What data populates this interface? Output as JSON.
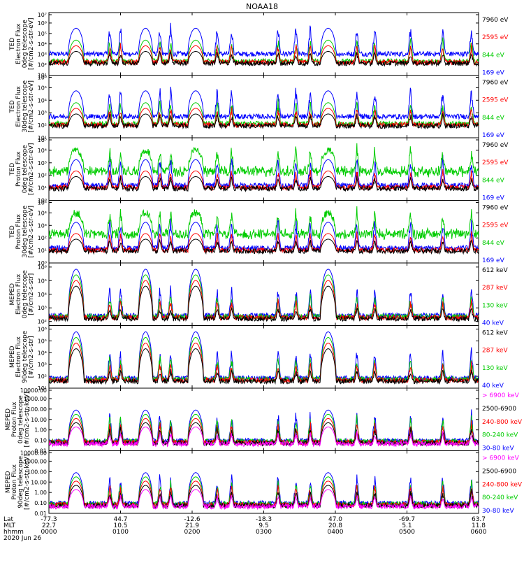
{
  "chart_data": {
    "type": "line",
    "title": "NOAA18",
    "panels": [
      {
        "name": "ted-electron-0deg",
        "ylabel_lines": [
          "TED",
          "Electron Flux",
          "0deg telescope",
          "[#/cm2-s-str-eV]"
        ],
        "yscale": "log",
        "yticks": [
          "10¹",
          "10²",
          "10³",
          "10⁴",
          "10⁵",
          "10⁶",
          "10⁷"
        ],
        "ylim_exp": [
          1,
          7
        ],
        "legend": [
          {
            "label": "7960 eV",
            "color": "#000000"
          },
          {
            "label": "2595 eV",
            "color": "#ff0000"
          },
          {
            "label": "844 eV",
            "color": "#00cc00"
          },
          {
            "label": "169 eV",
            "color": "#0000ff"
          }
        ]
      },
      {
        "name": "ted-electron-30deg",
        "ylabel_lines": [
          "TED",
          "Electron Flux",
          "30deg telescope",
          "[#/cm2-s-str-eV]"
        ],
        "yscale": "log",
        "yticks": [
          "10¹",
          "10²",
          "10³",
          "10⁴",
          "10⁵",
          "10⁶"
        ],
        "ylim_exp": [
          1,
          6
        ],
        "legend": [
          {
            "label": "7960 eV",
            "color": "#000000"
          },
          {
            "label": "2595 eV",
            "color": "#ff0000"
          },
          {
            "label": "844 eV",
            "color": "#00cc00"
          },
          {
            "label": "169 eV",
            "color": "#0000ff"
          }
        ]
      },
      {
        "name": "ted-proton-0deg",
        "ylabel_lines": [
          "TED",
          "Proton Flux",
          "0deg telescope",
          "[#/cm2-s-str-eV]"
        ],
        "yscale": "log",
        "yticks": [
          "10⁰",
          "10¹",
          "10²",
          "10³",
          "10⁴",
          "10⁵"
        ],
        "ylim_exp": [
          0,
          5
        ],
        "legend": [
          {
            "label": "7960 eV",
            "color": "#000000"
          },
          {
            "label": "2595 eV",
            "color": "#ff0000"
          },
          {
            "label": "844 eV",
            "color": "#00cc00"
          },
          {
            "label": "169 eV",
            "color": "#0000ff"
          }
        ]
      },
      {
        "name": "ted-proton-30deg",
        "ylabel_lines": [
          "TED",
          "Proton Flux",
          "30deg telescope",
          "[#/cm2-s-str-eV]"
        ],
        "yscale": "log",
        "yticks": [
          "10⁰",
          "10¹",
          "10²",
          "10³",
          "10⁴",
          "10⁵"
        ],
        "ylim_exp": [
          0,
          5
        ],
        "legend": [
          {
            "label": "7960 eV",
            "color": "#000000"
          },
          {
            "label": "2595 eV",
            "color": "#ff0000"
          },
          {
            "label": "844 eV",
            "color": "#00cc00"
          },
          {
            "label": "169 eV",
            "color": "#0000ff"
          }
        ]
      },
      {
        "name": "meped-electron-0deg",
        "ylabel_lines": [
          "MEPED",
          "Electron Flux",
          "0deg telescope",
          "[#/cm2-s-str]"
        ],
        "yscale": "log",
        "yticks": [
          "10²",
          "10³",
          "10⁴",
          "10⁵",
          "10⁶"
        ],
        "ylim_exp": [
          1.7,
          6.3
        ],
        "legend": [
          {
            "label": "612 keV",
            "color": "#000000"
          },
          {
            "label": "287 keV",
            "color": "#ff0000"
          },
          {
            "label": "130 keV",
            "color": "#00cc00"
          },
          {
            "label": "40 keV",
            "color": "#0000ff"
          }
        ]
      },
      {
        "name": "meped-electron-90deg",
        "ylabel_lines": [
          "MEPED",
          "Electron Flux",
          "90deg telescope",
          "[#/cm2-s-str]"
        ],
        "yscale": "log",
        "yticks": [
          "10¹",
          "10²",
          "10³",
          "10⁴",
          "10⁵",
          "10⁶"
        ],
        "ylim_exp": [
          1,
          6.3
        ],
        "legend": [
          {
            "label": "612 keV",
            "color": "#000000"
          },
          {
            "label": "287 keV",
            "color": "#ff0000"
          },
          {
            "label": "130 keV",
            "color": "#00cc00"
          },
          {
            "label": "40 keV",
            "color": "#0000ff"
          }
        ]
      },
      {
        "name": "meped-proton-0deg",
        "ylabel_lines": [
          "MEPED",
          "Proton Flux",
          "0deg telescope",
          "[#/cm2-s-str-keV]"
        ],
        "yscale": "log",
        "yticks": [
          "0.01",
          "0.10",
          "1.00",
          "10.00",
          "100.00",
          "1000.00",
          "10000.00"
        ],
        "ylim_exp": [
          -2,
          4
        ],
        "legend": [
          {
            "label": "> 6900 keV",
            "color": "#ff00ff"
          },
          {
            "label": "2500-6900",
            "color": "#000000"
          },
          {
            "label": "240-800 keV",
            "color": "#ff0000"
          },
          {
            "label": "80-240 keV",
            "color": "#00cc00"
          },
          {
            "label": "30-80 keV",
            "color": "#0000ff"
          }
        ]
      },
      {
        "name": "meped-proton-90deg",
        "ylabel_lines": [
          "MEPED",
          "Proton Flux",
          "90deg telescope",
          "[#/cm2-s-str-keV]"
        ],
        "yscale": "log",
        "yticks": [
          "0.01",
          "0.10",
          "1.00",
          "10.00",
          "100.00",
          "1000.00",
          "10000.00"
        ],
        "ylim_exp": [
          -2,
          4
        ],
        "legend": [
          {
            "label": "> 6900 keV",
            "color": "#ff00ff"
          },
          {
            "label": "2500-6900",
            "color": "#000000"
          },
          {
            "label": "240-800 keV",
            "color": "#ff0000"
          },
          {
            "label": "80-240 keV",
            "color": "#00cc00"
          },
          {
            "label": "30-80 keV",
            "color": "#0000ff"
          }
        ]
      }
    ],
    "x_axis": {
      "row_labels": [
        "Lat",
        "MLT",
        "hhmm"
      ],
      "date": "2020 Jun 26",
      "ticks": [
        {
          "lat": "-77.3",
          "mlt": "22.7",
          "hhmm": "0000"
        },
        {
          "lat": "44.7",
          "mlt": "10.5",
          "hhmm": "0100"
        },
        {
          "lat": "-12.6",
          "mlt": "21.9",
          "hhmm": "0200"
        },
        {
          "lat": "-18.3",
          "mlt": "9.5",
          "hhmm": "0300"
        },
        {
          "lat": "47.0",
          "mlt": "20.8",
          "hhmm": "0400"
        },
        {
          "lat": "-69.7",
          "mlt": "5.1",
          "hhmm": "0500"
        },
        {
          "lat": "63.7",
          "mlt": "11.8",
          "hhmm": "0600"
        }
      ]
    },
    "passes": [
      {
        "center": 0.38,
        "width": 0.22,
        "type": "polar"
      },
      {
        "center": 1.35,
        "width": 0.2,
        "type": "polar"
      },
      {
        "center": 2.05,
        "width": 0.22,
        "type": "polar"
      },
      {
        "center": 3.9,
        "width": 0.22,
        "type": "polar"
      }
    ],
    "spikes": [
      0.85,
      1.0,
      1.55,
      1.7,
      2.35,
      2.55,
      3.2,
      3.45,
      3.65,
      4.3,
      4.55,
      5.05,
      5.5,
      5.9
    ]
  }
}
